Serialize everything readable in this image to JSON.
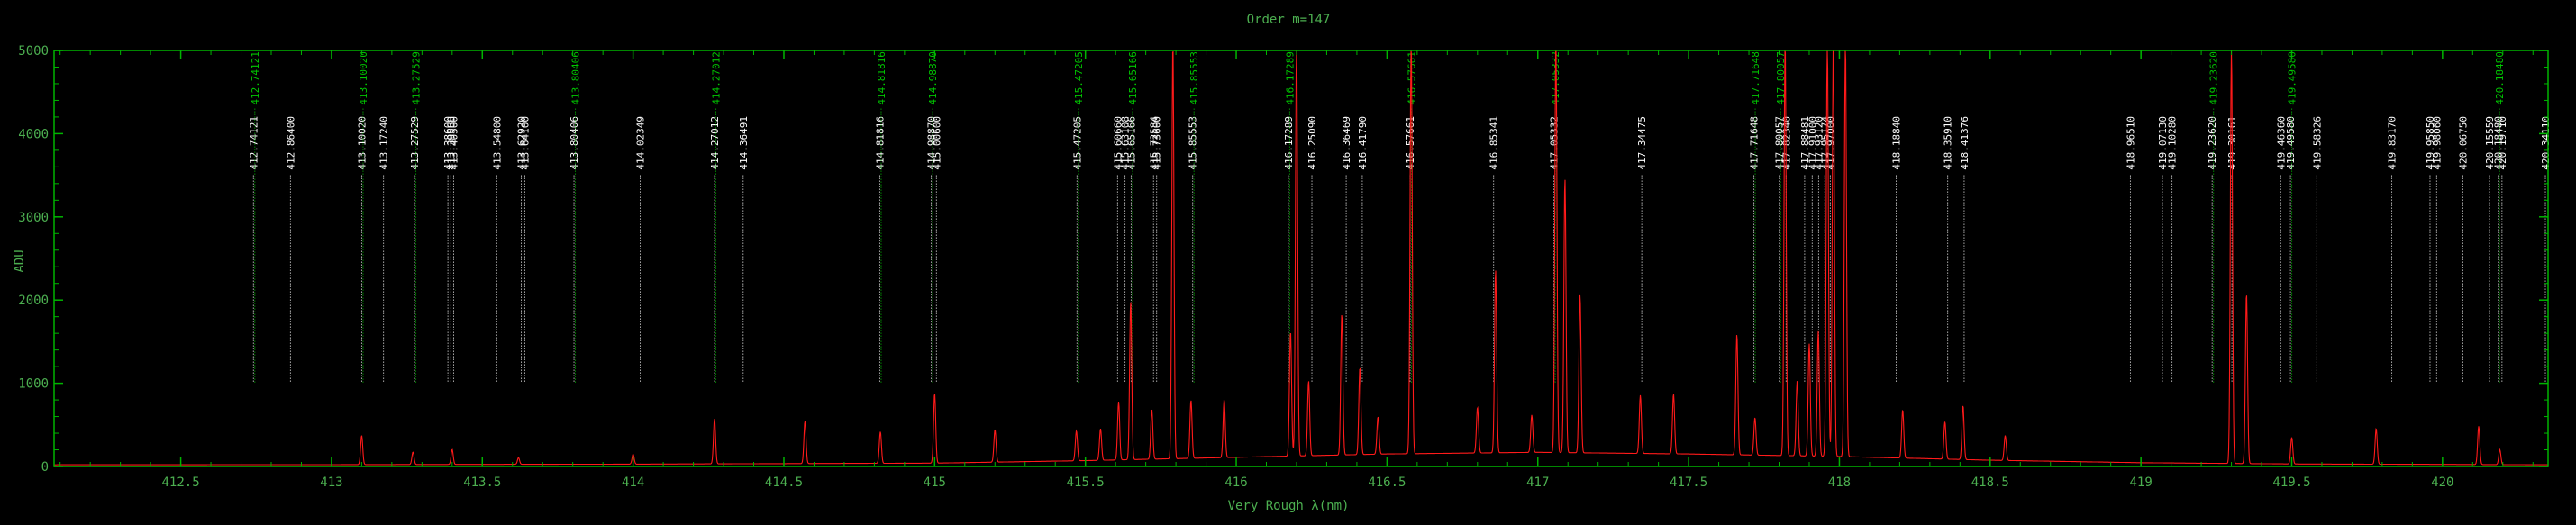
{
  "chart_data": {
    "type": "line",
    "title": "Order m=147",
    "xlabel": "Very Rough λ(nm)",
    "ylabel": "ADU",
    "xlim": [
      412.08,
      420.35
    ],
    "ylim": [
      0,
      5000
    ],
    "x_ticks": [
      412.5,
      413,
      413.5,
      414,
      414.5,
      415,
      415.5,
      416,
      416.5,
      417,
      417.5,
      418,
      418.5,
      419,
      419.5,
      420
    ],
    "x_tick_labels": [
      "412.5",
      "413",
      "413.5",
      "414",
      "414.5",
      "415",
      "415.5",
      "416",
      "416.5",
      "417",
      "417.5",
      "418",
      "418.5",
      "419",
      "419.5",
      "420"
    ],
    "y_ticks": [
      0,
      1000,
      2000,
      3000,
      4000,
      5000
    ],
    "y_tick_labels": [
      "0",
      "1000",
      "2000",
      "3000",
      "4000",
      "5000"
    ],
    "colors": {
      "spectrum": "#ff1a1a",
      "axes": "#00b400",
      "text": "#4caf50",
      "catalog_line": "#00c800",
      "identified_line": "#ffffff"
    },
    "baseline": {
      "x": [
        412.08,
        413.0,
        414.0,
        415.0,
        415.5,
        416.0,
        416.5,
        417.0,
        417.5,
        418.0,
        418.5,
        419.0,
        419.5,
        420.0,
        420.35
      ],
      "y": [
        20,
        22,
        28,
        40,
        70,
        110,
        150,
        170,
        150,
        120,
        75,
        45,
        30,
        25,
        20
      ]
    },
    "spectrum_peaks": [
      {
        "x": 413.1,
        "y": 350
      },
      {
        "x": 413.27,
        "y": 150
      },
      {
        "x": 413.4,
        "y": 180
      },
      {
        "x": 413.62,
        "y": 80
      },
      {
        "x": 414.0,
        "y": 120
      },
      {
        "x": 414.27,
        "y": 540
      },
      {
        "x": 414.57,
        "y": 510
      },
      {
        "x": 414.82,
        "y": 380
      },
      {
        "x": 415.0,
        "y": 840
      },
      {
        "x": 415.2,
        "y": 390
      },
      {
        "x": 415.47,
        "y": 360
      },
      {
        "x": 415.55,
        "y": 380
      },
      {
        "x": 415.61,
        "y": 700
      },
      {
        "x": 415.65,
        "y": 1900
      },
      {
        "x": 415.72,
        "y": 600
      },
      {
        "x": 415.79,
        "y": 5000
      },
      {
        "x": 415.85,
        "y": 700
      },
      {
        "x": 415.96,
        "y": 700
      },
      {
        "x": 416.18,
        "y": 1500
      },
      {
        "x": 416.2,
        "y": 5000
      },
      {
        "x": 416.24,
        "y": 900
      },
      {
        "x": 416.35,
        "y": 1700
      },
      {
        "x": 416.41,
        "y": 1050
      },
      {
        "x": 416.47,
        "y": 450
      },
      {
        "x": 416.58,
        "y": 5000
      },
      {
        "x": 416.8,
        "y": 550
      },
      {
        "x": 416.86,
        "y": 2200
      },
      {
        "x": 416.98,
        "y": 450
      },
      {
        "x": 417.06,
        "y": 5000
      },
      {
        "x": 417.09,
        "y": 3300
      },
      {
        "x": 417.14,
        "y": 1900
      },
      {
        "x": 417.34,
        "y": 700
      },
      {
        "x": 417.45,
        "y": 720
      },
      {
        "x": 417.66,
        "y": 1450
      },
      {
        "x": 417.72,
        "y": 450
      },
      {
        "x": 417.82,
        "y": 5000
      },
      {
        "x": 417.86,
        "y": 900
      },
      {
        "x": 417.9,
        "y": 1350
      },
      {
        "x": 417.93,
        "y": 1500
      },
      {
        "x": 417.96,
        "y": 5000
      },
      {
        "x": 417.98,
        "y": 5000
      },
      {
        "x": 418.02,
        "y": 5000
      },
      {
        "x": 418.21,
        "y": 580
      },
      {
        "x": 418.35,
        "y": 450
      },
      {
        "x": 418.41,
        "y": 650
      },
      {
        "x": 418.55,
        "y": 300
      },
      {
        "x": 419.3,
        "y": 5000
      },
      {
        "x": 419.35,
        "y": 2050
      },
      {
        "x": 419.5,
        "y": 320
      },
      {
        "x": 419.78,
        "y": 430
      },
      {
        "x": 420.12,
        "y": 460
      },
      {
        "x": 420.19,
        "y": 180
      }
    ],
    "catalog_lines": [
      {
        "x": 412.74121,
        "label": "412.74121"
      },
      {
        "x": 413.1002,
        "label": "413.10020"
      },
      {
        "x": 413.27529,
        "label": "413.27529"
      },
      {
        "x": 413.80406,
        "label": "413.80406"
      },
      {
        "x": 414.27012,
        "label": "414.27012"
      },
      {
        "x": 414.81816,
        "label": "414.81816"
      },
      {
        "x": 414.9887,
        "label": "414.98870"
      },
      {
        "x": 415.47205,
        "label": "415.47205"
      },
      {
        "x": 415.65166,
        "label": "415.65166"
      },
      {
        "x": 415.85553,
        "label": "415.85553"
      },
      {
        "x": 416.17289,
        "label": "416.17289"
      },
      {
        "x": 416.57661,
        "label": "416.57661"
      },
      {
        "x": 417.05332,
        "label": "417.05332"
      },
      {
        "x": 417.71648,
        "label": "417.71648"
      },
      {
        "x": 417.80057,
        "label": "417.80057"
      },
      {
        "x": 419.2362,
        "label": "419.23620"
      },
      {
        "x": 419.4958,
        "label": "419.49580"
      },
      {
        "x": 420.1848,
        "label": "420.18480"
      }
    ],
    "identified_lines": [
      {
        "x": 412.74121,
        "label": "412.74121"
      },
      {
        "x": 412.864,
        "label": "412.86400"
      },
      {
        "x": 413.1002,
        "label": "413.10020"
      },
      {
        "x": 413.1724,
        "label": "413.17240"
      },
      {
        "x": 413.27529,
        "label": "413.27529"
      },
      {
        "x": 413.386,
        "label": "413.38600"
      },
      {
        "x": 413.3956,
        "label": "413.39560"
      },
      {
        "x": 413.405,
        "label": "413.40500"
      },
      {
        "x": 413.548,
        "label": "413.54800"
      },
      {
        "x": 413.6292,
        "label": "413.62920"
      },
      {
        "x": 413.641,
        "label": "413.64100"
      },
      {
        "x": 413.80406,
        "label": "413.80406"
      },
      {
        "x": 414.02349,
        "label": "414.02349"
      },
      {
        "x": 414.27012,
        "label": "414.27012"
      },
      {
        "x": 414.36491,
        "label": "414.36491"
      },
      {
        "x": 414.81816,
        "label": "414.81816"
      },
      {
        "x": 414.9887,
        "label": "414.98870"
      },
      {
        "x": 415.006,
        "label": "415.00600"
      },
      {
        "x": 415.47205,
        "label": "415.47205"
      },
      {
        "x": 415.6066,
        "label": "415.60660"
      },
      {
        "x": 415.63108,
        "label": "415.63108"
      },
      {
        "x": 415.65166,
        "label": "415.65166"
      },
      {
        "x": 415.72584,
        "label": "415.72584"
      },
      {
        "x": 415.736,
        "label": "415.73600"
      },
      {
        "x": 415.85553,
        "label": "415.85553"
      },
      {
        "x": 416.17289,
        "label": "416.17289"
      },
      {
        "x": 416.2509,
        "label": "416.25090"
      },
      {
        "x": 416.36469,
        "label": "416.36469"
      },
      {
        "x": 416.4179,
        "label": "416.41790"
      },
      {
        "x": 416.57661,
        "label": "416.57661"
      },
      {
        "x": 416.85341,
        "label": "416.85341"
      },
      {
        "x": 417.05332,
        "label": "417.05332"
      },
      {
        "x": 417.34475,
        "label": "417.34475"
      },
      {
        "x": 417.71648,
        "label": "417.71648"
      },
      {
        "x": 417.80057,
        "label": "417.80057"
      },
      {
        "x": 417.8234,
        "label": "417.82340"
      },
      {
        "x": 417.88481,
        "label": "417.88481"
      },
      {
        "x": 417.91,
        "label": "417.91000"
      },
      {
        "x": 417.9312,
        "label": "417.93120"
      },
      {
        "x": 417.95174,
        "label": "417.95174"
      },
      {
        "x": 417.97,
        "label": "417.97000"
      },
      {
        "x": 418.1884,
        "label": "418.18840"
      },
      {
        "x": 418.3591,
        "label": "418.35910"
      },
      {
        "x": 418.41376,
        "label": "418.41376"
      },
      {
        "x": 418.9651,
        "label": "418.96510"
      },
      {
        "x": 419.0713,
        "label": "419.07130"
      },
      {
        "x": 419.1028,
        "label": "419.10280"
      },
      {
        "x": 419.2362,
        "label": "419.23620"
      },
      {
        "x": 419.30161,
        "label": "419.30161"
      },
      {
        "x": 419.4636,
        "label": "419.46360"
      },
      {
        "x": 419.4958,
        "label": "419.49580"
      },
      {
        "x": 419.58326,
        "label": "419.58326"
      },
      {
        "x": 419.8317,
        "label": "419.83170"
      },
      {
        "x": 419.9585,
        "label": "419.95850"
      },
      {
        "x": 419.9806,
        "label": "419.98060"
      },
      {
        "x": 420.0675,
        "label": "420.06750"
      },
      {
        "x": 420.15559,
        "label": "420.15559"
      },
      {
        "x": 420.1848,
        "label": "420.18480"
      },
      {
        "x": 420.1971,
        "label": "420.19710"
      },
      {
        "x": 420.3411,
        "label": "420.34110"
      }
    ]
  }
}
